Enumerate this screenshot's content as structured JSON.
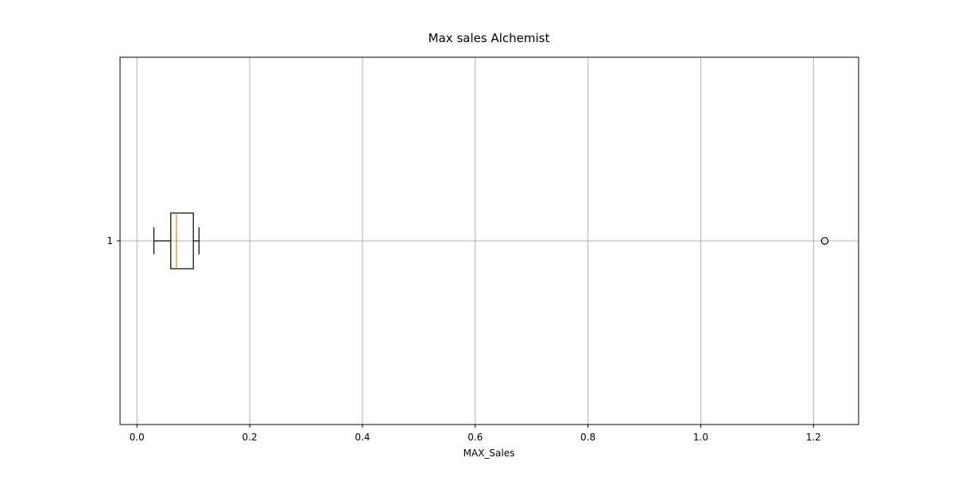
{
  "chart_data": {
    "type": "boxplot",
    "orientation": "horizontal",
    "title": "Max sales Alchemist",
    "xlabel": "MAX_Sales",
    "ylabel": "",
    "xlim": [
      -0.03,
      1.28
    ],
    "x_ticks": [
      0.0,
      0.2,
      0.4,
      0.6,
      0.8,
      1.0,
      1.2
    ],
    "x_tick_labels": [
      "0.0",
      "0.2",
      "0.4",
      "0.6",
      "0.8",
      "1.0",
      "1.2"
    ],
    "y_tick_labels": [
      "1"
    ],
    "grid": true,
    "boxes": [
      {
        "category": "1",
        "whisker_low": 0.03,
        "q1": 0.06,
        "median": 0.07,
        "q3": 0.1,
        "whisker_high": 0.11,
        "outliers": [
          1.22
        ]
      }
    ],
    "colors": {
      "box": "#000000",
      "median": "#ff7f0e",
      "grid": "#b0b0b0",
      "outlier_fill": "none"
    }
  }
}
